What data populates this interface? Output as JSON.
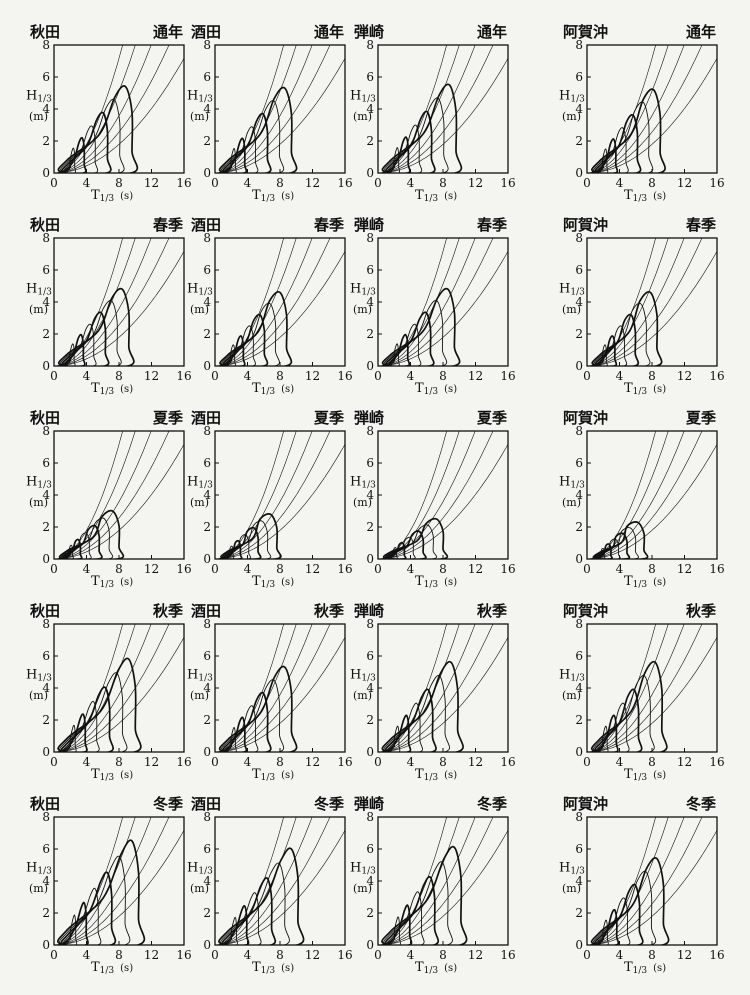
{
  "colors": {
    "ink": "#111111",
    "paper": "#f4f4f1"
  },
  "chart_data": {
    "type": "contour",
    "layout": "5 rows x 4 columns of small panels",
    "sites": [
      "秋田",
      "酒田",
      "弾崎",
      "阿賀沖"
    ],
    "seasons": [
      "通年",
      "春季",
      "夏季",
      "秋季",
      "冬季"
    ],
    "xlabel": {
      "main": "T",
      "sub": "1/3",
      "unit": "(s)"
    },
    "ylabel": {
      "main": "H",
      "sub": "1/3",
      "unit": "(m)"
    },
    "xlim": [
      0,
      16
    ],
    "ylim": [
      0,
      8
    ],
    "xticks": [
      0,
      4,
      8,
      12,
      16
    ],
    "yticks": [
      0,
      2,
      4,
      6,
      8
    ],
    "xtick_labels": [
      "0",
      "4",
      "8",
      "12",
      "16"
    ],
    "ytick_labels": [
      "0",
      "2",
      "4",
      "6",
      "8"
    ],
    "steepness_curves": {
      "description": "H = c * T^2 reference curves",
      "c": [
        0.112,
        0.08,
        0.056,
        0.04,
        0.028
      ]
    },
    "outer_contour_extent": [
      [
        {
          "tmax": 9.6,
          "hmax": 5.4
        },
        {
          "tmax": 9.4,
          "hmax": 5.3
        },
        {
          "tmax": 9.6,
          "hmax": 5.5
        },
        {
          "tmax": 9.0,
          "hmax": 5.2
        }
      ],
      [
        {
          "tmax": 9.2,
          "hmax": 4.8
        },
        {
          "tmax": 8.8,
          "hmax": 4.6
        },
        {
          "tmax": 9.4,
          "hmax": 4.8
        },
        {
          "tmax": 8.6,
          "hmax": 4.6
        }
      ],
      [
        {
          "tmax": 8.0,
          "hmax": 3.0
        },
        {
          "tmax": 7.6,
          "hmax": 2.8
        },
        {
          "tmax": 8.0,
          "hmax": 2.5
        },
        {
          "tmax": 7.0,
          "hmax": 2.3
        }
      ],
      [
        {
          "tmax": 10.0,
          "hmax": 5.8
        },
        {
          "tmax": 9.4,
          "hmax": 5.3
        },
        {
          "tmax": 9.8,
          "hmax": 5.6
        },
        {
          "tmax": 9.2,
          "hmax": 5.6
        }
      ],
      [
        {
          "tmax": 10.4,
          "hmax": 6.5
        },
        {
          "tmax": 10.2,
          "hmax": 6.0
        },
        {
          "tmax": 10.2,
          "hmax": 6.1
        },
        {
          "tmax": 9.4,
          "hmax": 5.4
        }
      ]
    ]
  }
}
